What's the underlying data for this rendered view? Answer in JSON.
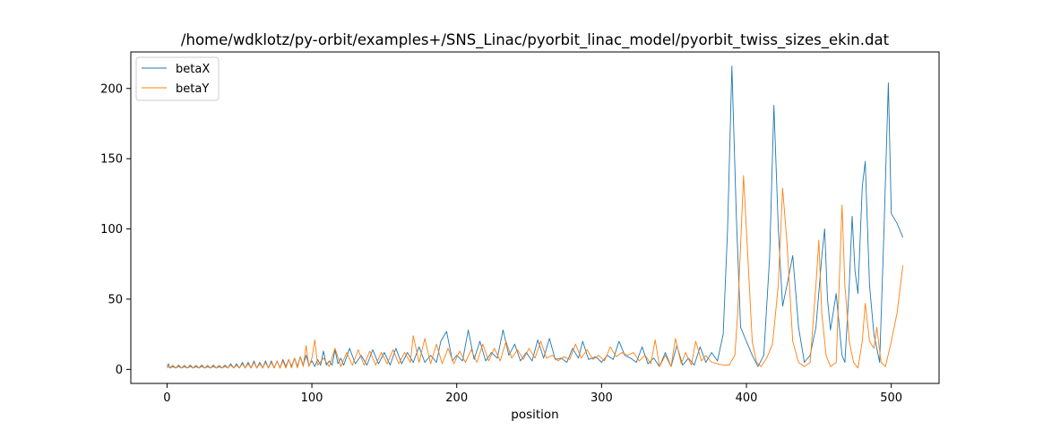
{
  "chart_data": {
    "type": "line",
    "title": "/home/wdklotz/py-orbit/examples+/SNS_Linac/pyorbit_linac_model/pyorbit_twiss_sizes_ekin.dat",
    "xlabel": "position",
    "ylabel": "",
    "xlim": [
      -25,
      533
    ],
    "ylim": [
      -10,
      226
    ],
    "xticks": [
      0,
      100,
      200,
      300,
      400,
      500
    ],
    "yticks": [
      0,
      50,
      100,
      150,
      200
    ],
    "legend": "top-left",
    "grid": false,
    "series": [
      {
        "name": "betaX",
        "color": "#1f77b4",
        "points": [
          [
            0,
            2
          ],
          [
            1,
            4
          ],
          [
            2,
            1
          ],
          [
            4,
            2
          ],
          [
            6,
            1
          ],
          [
            8,
            3
          ],
          [
            10,
            1
          ],
          [
            12,
            2
          ],
          [
            14,
            1
          ],
          [
            16,
            3
          ],
          [
            18,
            1
          ],
          [
            20,
            2
          ],
          [
            22,
            1
          ],
          [
            24,
            3
          ],
          [
            26,
            1
          ],
          [
            28,
            2
          ],
          [
            30,
            1
          ],
          [
            32,
            3
          ],
          [
            34,
            1
          ],
          [
            36,
            2
          ],
          [
            38,
            1
          ],
          [
            40,
            3
          ],
          [
            42,
            1
          ],
          [
            44,
            4
          ],
          [
            46,
            1
          ],
          [
            48,
            4
          ],
          [
            50,
            1
          ],
          [
            52,
            5
          ],
          [
            54,
            1
          ],
          [
            56,
            5
          ],
          [
            58,
            1
          ],
          [
            60,
            6
          ],
          [
            62,
            1
          ],
          [
            64,
            5
          ],
          [
            66,
            1
          ],
          [
            68,
            6
          ],
          [
            70,
            1
          ],
          [
            72,
            6
          ],
          [
            74,
            1
          ],
          [
            76,
            6
          ],
          [
            78,
            1
          ],
          [
            80,
            7
          ],
          [
            82,
            2
          ],
          [
            84,
            7
          ],
          [
            86,
            2
          ],
          [
            88,
            8
          ],
          [
            90,
            2
          ],
          [
            92,
            9
          ],
          [
            94,
            3
          ],
          [
            96,
            10
          ],
          [
            98,
            3
          ],
          [
            100,
            6
          ],
          [
            102,
            2
          ],
          [
            104,
            7
          ],
          [
            106,
            3
          ],
          [
            108,
            13
          ],
          [
            110,
            3
          ],
          [
            112,
            6
          ],
          [
            114,
            3
          ],
          [
            116,
            14
          ],
          [
            118,
            4
          ],
          [
            120,
            8
          ],
          [
            122,
            3
          ],
          [
            126,
            15
          ],
          [
            130,
            4
          ],
          [
            134,
            10
          ],
          [
            138,
            3
          ],
          [
            142,
            14
          ],
          [
            146,
            4
          ],
          [
            150,
            12
          ],
          [
            154,
            3
          ],
          [
            158,
            15
          ],
          [
            162,
            4
          ],
          [
            166,
            12
          ],
          [
            170,
            5
          ],
          [
            174,
            16
          ],
          [
            178,
            5
          ],
          [
            182,
            10
          ],
          [
            186,
            5
          ],
          [
            189,
            20
          ],
          [
            193,
            27
          ],
          [
            197,
            6
          ],
          [
            200,
            10
          ],
          [
            204,
            6
          ],
          [
            208,
            28
          ],
          [
            212,
            7
          ],
          [
            216,
            20
          ],
          [
            220,
            6
          ],
          [
            224,
            12
          ],
          [
            228,
            8
          ],
          [
            232,
            28
          ],
          [
            236,
            10
          ],
          [
            240,
            18
          ],
          [
            244,
            6
          ],
          [
            248,
            12
          ],
          [
            252,
            6
          ],
          [
            256,
            21
          ],
          [
            260,
            8
          ],
          [
            264,
            22
          ],
          [
            268,
            7
          ],
          [
            272,
            8
          ],
          [
            276,
            5
          ],
          [
            280,
            15
          ],
          [
            284,
            8
          ],
          [
            287,
            20
          ],
          [
            291,
            7
          ],
          [
            296,
            9
          ],
          [
            300,
            5
          ],
          [
            304,
            10
          ],
          [
            308,
            7
          ],
          [
            312,
            20
          ],
          [
            316,
            10
          ],
          [
            320,
            8
          ],
          [
            324,
            5
          ],
          [
            328,
            16
          ],
          [
            332,
            4
          ],
          [
            336,
            8
          ],
          [
            340,
            2
          ],
          [
            344,
            12
          ],
          [
            348,
            2
          ],
          [
            352,
            17
          ],
          [
            356,
            3
          ],
          [
            360,
            8
          ],
          [
            364,
            3
          ],
          [
            368,
            16
          ],
          [
            372,
            5
          ],
          [
            376,
            12
          ],
          [
            380,
            6
          ],
          [
            384,
            25
          ],
          [
            387,
            100
          ],
          [
            390,
            216
          ],
          [
            393,
            110
          ],
          [
            396,
            30
          ],
          [
            400,
            20
          ],
          [
            404,
            10
          ],
          [
            408,
            2
          ],
          [
            412,
            10
          ],
          [
            416,
            80
          ],
          [
            419,
            188
          ],
          [
            422,
            100
          ],
          [
            425,
            45
          ],
          [
            428,
            60
          ],
          [
            432,
            81
          ],
          [
            436,
            30
          ],
          [
            440,
            5
          ],
          [
            444,
            10
          ],
          [
            448,
            30
          ],
          [
            452,
            80
          ],
          [
            454,
            100
          ],
          [
            456,
            50
          ],
          [
            458,
            28
          ],
          [
            462,
            54
          ],
          [
            466,
            10
          ],
          [
            468,
            5
          ],
          [
            471,
            60
          ],
          [
            473,
            109
          ],
          [
            475,
            70
          ],
          [
            477,
            54
          ],
          [
            480,
            130
          ],
          [
            482,
            148
          ],
          [
            485,
            60
          ],
          [
            488,
            25
          ],
          [
            492,
            5
          ],
          [
            495,
            100
          ],
          [
            498,
            204
          ],
          [
            500,
            111
          ],
          [
            504,
            104
          ],
          [
            508,
            94
          ]
        ]
      },
      {
        "name": "betaY",
        "color": "#ff7f0e",
        "points": [
          [
            0,
            1
          ],
          [
            1,
            2
          ],
          [
            2,
            1
          ],
          [
            4,
            3
          ],
          [
            6,
            1
          ],
          [
            8,
            2
          ],
          [
            10,
            1
          ],
          [
            12,
            3
          ],
          [
            14,
            1
          ],
          [
            16,
            2
          ],
          [
            18,
            1
          ],
          [
            20,
            3
          ],
          [
            22,
            1
          ],
          [
            24,
            2
          ],
          [
            26,
            1
          ],
          [
            28,
            3
          ],
          [
            30,
            1
          ],
          [
            32,
            2
          ],
          [
            34,
            1
          ],
          [
            36,
            3
          ],
          [
            38,
            1
          ],
          [
            40,
            2
          ],
          [
            42,
            1
          ],
          [
            44,
            3
          ],
          [
            46,
            1
          ],
          [
            48,
            3
          ],
          [
            50,
            1
          ],
          [
            52,
            4
          ],
          [
            54,
            1
          ],
          [
            56,
            4
          ],
          [
            58,
            1
          ],
          [
            60,
            5
          ],
          [
            62,
            1
          ],
          [
            64,
            4
          ],
          [
            66,
            1
          ],
          [
            68,
            5
          ],
          [
            70,
            1
          ],
          [
            72,
            5
          ],
          [
            74,
            1
          ],
          [
            76,
            6
          ],
          [
            78,
            1
          ],
          [
            80,
            6
          ],
          [
            82,
            1
          ],
          [
            84,
            7
          ],
          [
            86,
            1
          ],
          [
            88,
            8
          ],
          [
            90,
            1
          ],
          [
            92,
            9
          ],
          [
            94,
            2
          ],
          [
            96,
            17
          ],
          [
            98,
            2
          ],
          [
            100,
            8
          ],
          [
            102,
            21
          ],
          [
            104,
            3
          ],
          [
            108,
            8
          ],
          [
            112,
            2
          ],
          [
            116,
            15
          ],
          [
            120,
            2
          ],
          [
            124,
            12
          ],
          [
            128,
            3
          ],
          [
            132,
            14
          ],
          [
            136,
            3
          ],
          [
            140,
            13
          ],
          [
            144,
            3
          ],
          [
            148,
            12
          ],
          [
            152,
            4
          ],
          [
            156,
            14
          ],
          [
            160,
            4
          ],
          [
            164,
            12
          ],
          [
            168,
            5
          ],
          [
            170,
            24
          ],
          [
            174,
            5
          ],
          [
            178,
            22
          ],
          [
            182,
            4
          ],
          [
            186,
            18
          ],
          [
            190,
            4
          ],
          [
            194,
            15
          ],
          [
            198,
            4
          ],
          [
            202,
            13
          ],
          [
            206,
            5
          ],
          [
            210,
            14
          ],
          [
            214,
            5
          ],
          [
            218,
            18
          ],
          [
            222,
            6
          ],
          [
            226,
            15
          ],
          [
            230,
            6
          ],
          [
            234,
            20
          ],
          [
            238,
            8
          ],
          [
            242,
            14
          ],
          [
            246,
            7
          ],
          [
            250,
            15
          ],
          [
            254,
            8
          ],
          [
            258,
            20
          ],
          [
            262,
            8
          ],
          [
            266,
            10
          ],
          [
            270,
            6
          ],
          [
            274,
            9
          ],
          [
            278,
            7
          ],
          [
            282,
            18
          ],
          [
            286,
            8
          ],
          [
            290,
            14
          ],
          [
            294,
            7
          ],
          [
            298,
            10
          ],
          [
            302,
            6
          ],
          [
            306,
            16
          ],
          [
            310,
            9
          ],
          [
            314,
            12
          ],
          [
            318,
            10
          ],
          [
            322,
            12
          ],
          [
            326,
            6
          ],
          [
            330,
            10
          ],
          [
            334,
            4
          ],
          [
            337,
            21
          ],
          [
            340,
            2
          ],
          [
            344,
            10
          ],
          [
            348,
            2
          ],
          [
            351,
            22
          ],
          [
            355,
            4
          ],
          [
            358,
            12
          ],
          [
            362,
            3
          ],
          [
            365,
            20
          ],
          [
            369,
            6
          ],
          [
            372,
            10
          ],
          [
            376,
            5
          ],
          [
            380,
            4
          ],
          [
            384,
            3
          ],
          [
            388,
            3
          ],
          [
            392,
            10
          ],
          [
            394,
            40
          ],
          [
            398,
            138
          ],
          [
            401,
            80
          ],
          [
            404,
            20
          ],
          [
            407,
            5
          ],
          [
            410,
            2
          ],
          [
            414,
            8
          ],
          [
            418,
            18
          ],
          [
            422,
            60
          ],
          [
            425,
            129
          ],
          [
            428,
            90
          ],
          [
            432,
            20
          ],
          [
            436,
            5
          ],
          [
            440,
            2
          ],
          [
            444,
            5
          ],
          [
            448,
            60
          ],
          [
            450,
            92
          ],
          [
            452,
            40
          ],
          [
            455,
            10
          ],
          [
            458,
            2
          ],
          [
            462,
            5
          ],
          [
            464,
            60
          ],
          [
            466,
            117
          ],
          [
            468,
            60
          ],
          [
            471,
            20
          ],
          [
            474,
            5
          ],
          [
            477,
            1
          ],
          [
            480,
            20
          ],
          [
            482,
            47
          ],
          [
            485,
            20
          ],
          [
            488,
            15
          ],
          [
            490,
            30
          ],
          [
            493,
            5
          ],
          [
            496,
            2
          ],
          [
            500,
            20
          ],
          [
            504,
            40
          ],
          [
            508,
            74
          ]
        ]
      }
    ]
  }
}
